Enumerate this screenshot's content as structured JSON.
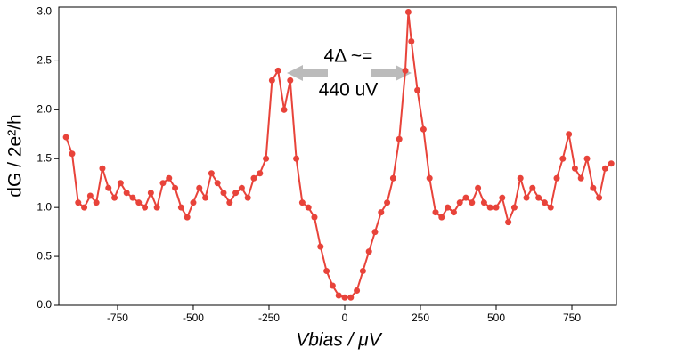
{
  "chart_data": {
    "type": "line",
    "x_label": "Vbias / μV",
    "y_label": "dG / 2e²/h",
    "annotation_lines": [
      "4Δ ~=",
      "440 uV"
    ],
    "color": "#e8433a",
    "x": [
      -920,
      -900,
      -880,
      -860,
      -840,
      -820,
      -800,
      -780,
      -760,
      -740,
      -720,
      -700,
      -680,
      -660,
      -640,
      -620,
      -600,
      -580,
      -560,
      -540,
      -520,
      -500,
      -480,
      -460,
      -440,
      -420,
      -400,
      -380,
      -360,
      -340,
      -320,
      -300,
      -280,
      -260,
      -240,
      -220,
      -200,
      -180,
      -160,
      -140,
      -120,
      -100,
      -80,
      -60,
      -40,
      -20,
      0,
      20,
      40,
      60,
      80,
      100,
      120,
      140,
      160,
      180,
      200,
      210,
      220,
      240,
      260,
      280,
      300,
      320,
      340,
      360,
      380,
      400,
      420,
      440,
      460,
      480,
      500,
      520,
      540,
      560,
      580,
      600,
      620,
      640,
      660,
      680,
      700,
      720,
      740,
      760,
      780,
      800,
      820,
      840,
      860,
      880
    ],
    "values": [
      1.72,
      1.55,
      1.05,
      1.0,
      1.12,
      1.05,
      1.4,
      1.2,
      1.1,
      1.25,
      1.15,
      1.1,
      1.05,
      1.0,
      1.15,
      1.0,
      1.25,
      1.3,
      1.2,
      1.0,
      0.9,
      1.05,
      1.2,
      1.1,
      1.35,
      1.25,
      1.15,
      1.05,
      1.15,
      1.2,
      1.1,
      1.3,
      1.35,
      1.5,
      2.3,
      2.4,
      2.0,
      2.3,
      1.5,
      1.05,
      1.0,
      0.9,
      0.6,
      0.35,
      0.2,
      0.1,
      0.08,
      0.08,
      0.15,
      0.35,
      0.55,
      0.75,
      0.95,
      1.05,
      1.3,
      1.7,
      2.4,
      3.0,
      2.7,
      2.2,
      1.8,
      1.3,
      0.95,
      0.9,
      1.0,
      0.95,
      1.05,
      1.1,
      1.05,
      1.2,
      1.05,
      1.0,
      1.0,
      1.1,
      0.85,
      1.0,
      1.3,
      1.1,
      1.2,
      1.1,
      1.05,
      1.0,
      1.3,
      1.5,
      1.75,
      1.4,
      1.3,
      1.5,
      1.2,
      1.1,
      1.4,
      1.45
    ],
    "xlim": [
      -944,
      897
    ],
    "ylim": [
      0,
      3.05
    ],
    "xticks": [
      -750,
      -500,
      -250,
      0,
      250,
      500,
      750
    ],
    "yticks": [
      {
        "value": 0,
        "label": "0.0"
      },
      0.5,
      {
        "value": 1,
        "label": "1.0"
      },
      1.5,
      {
        "value": 2,
        "label": "2.0"
      },
      2.5,
      {
        "value": 3,
        "label": "3.0"
      }
    ]
  }
}
